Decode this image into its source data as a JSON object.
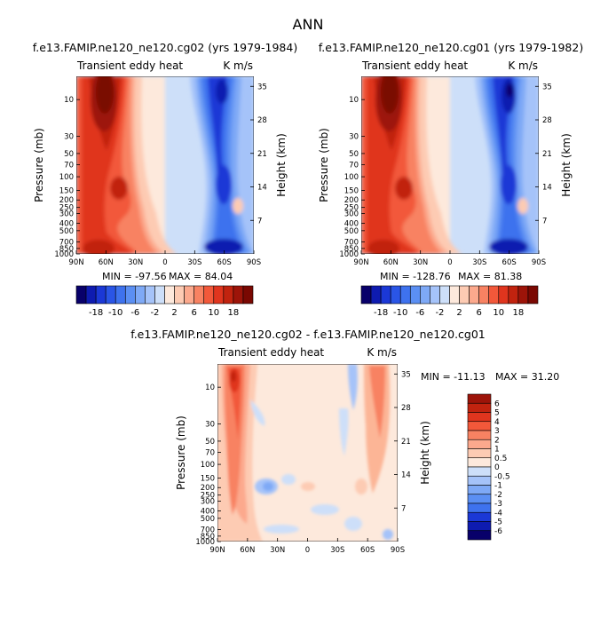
{
  "title": "ANN",
  "colors": {
    "shades": [
      "#08006a",
      "#0e1bb0",
      "#1b38d6",
      "#2a55e6",
      "#3e72ee",
      "#5b8ff3",
      "#7ea9f6",
      "#a5c3f9",
      "#cddff9",
      "#fde9dc",
      "#fdcbb3",
      "#fca98d",
      "#f88262",
      "#f2583a",
      "#e0351e",
      "#c1230f",
      "#9d1409",
      "#7a0802"
    ],
    "diff_shades": [
      "#08006a",
      "#0e1bb0",
      "#1b38d6",
      "#3e72ee",
      "#5b8ff3",
      "#7ea9f6",
      "#a5c3f9",
      "#cddff9",
      "#fde9dc",
      "#fdcbb3",
      "#fca98d",
      "#f88262",
      "#f2583a",
      "#e0351e",
      "#c1230f",
      "#9d1409"
    ]
  },
  "chart_data": [
    {
      "type": "heatmap",
      "title": "f.e13.FAMIP.ne120_ne120.cg02 (yrs 1979-1984)",
      "left_label": "Transient eddy heat",
      "units": "K m/s",
      "ylabel": "Pressure (mb)",
      "ylabel_right": "Height (km)",
      "x_ticks": [
        "90N",
        "60N",
        "30N",
        "0",
        "30S",
        "60S",
        "90S"
      ],
      "y_ticks": [
        "10",
        "30",
        "50",
        "70",
        "100",
        "150",
        "200",
        "250",
        "300",
        "400",
        "500",
        "700",
        "850",
        "1000"
      ],
      "height_ticks": [
        "35",
        "28",
        "21",
        "14",
        "7"
      ],
      "min_label": "MIN = -97.56",
      "max_label": "MAX = 84.04",
      "colorbar_labels": [
        "-18",
        "-10",
        "-6",
        "-2",
        "2",
        "6",
        "10",
        "18"
      ]
    },
    {
      "type": "heatmap",
      "title": "f.e13.FAMIP.ne120_ne120.cg01 (yrs 1979-1982)",
      "left_label": "Transient eddy heat",
      "units": "K m/s",
      "ylabel": "Pressure (mb)",
      "ylabel_right": "Height (km)",
      "x_ticks": [
        "90N",
        "60N",
        "30N",
        "0",
        "30S",
        "60S",
        "90S"
      ],
      "y_ticks": [
        "10",
        "30",
        "50",
        "70",
        "100",
        "150",
        "200",
        "250",
        "300",
        "400",
        "500",
        "700",
        "850",
        "1000"
      ],
      "height_ticks": [
        "35",
        "28",
        "21",
        "14",
        "7"
      ],
      "min_label": "MIN = -128.76",
      "max_label": "MAX = 81.38",
      "colorbar_labels": [
        "-18",
        "-10",
        "-6",
        "-2",
        "2",
        "6",
        "10",
        "18"
      ]
    },
    {
      "type": "heatmap",
      "title": "f.e13.FAMIP.ne120_ne120.cg02 - f.e13.FAMIP.ne120_ne120.cg01",
      "left_label": "Transient eddy heat",
      "units": "K m/s",
      "ylabel": "Pressure (mb)",
      "ylabel_right": "Height (km)",
      "x_ticks": [
        "90N",
        "60N",
        "30N",
        "0",
        "30S",
        "60S",
        "90S"
      ],
      "y_ticks": [
        "10",
        "30",
        "50",
        "70",
        "100",
        "150",
        "200",
        "250",
        "300",
        "400",
        "500",
        "700",
        "850",
        "1000"
      ],
      "height_ticks": [
        "35",
        "28",
        "21",
        "14",
        "7"
      ],
      "min_label": "MIN = -11.13",
      "max_label": "MAX =  31.20",
      "colorbar_labels": [
        "6",
        "5",
        "4",
        "3",
        "2",
        "1",
        "0.5",
        "0",
        "-0.5",
        "-1",
        "-2",
        "-3",
        "-4",
        "-5",
        "-6"
      ]
    }
  ]
}
